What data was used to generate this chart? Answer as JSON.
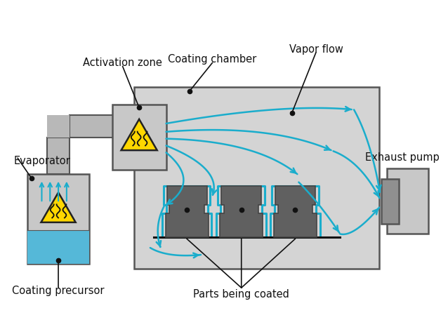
{
  "bg_color": "#ffffff",
  "chamber_color": "#d4d4d4",
  "chamber_edge": "#555555",
  "dark_gray": "#666666",
  "medium_gray": "#909090",
  "light_gray": "#c8c8c8",
  "pipe_gray": "#b8b8b8",
  "yellow": "#FFD700",
  "blue_arrow": "#1aadcc",
  "black": "#111111",
  "text_color": "#111111",
  "labels": {
    "evaporator": "Evaporator",
    "activation_zone": "Activation zone",
    "coating_chamber": "Coating chamber",
    "vapor_flow": "Vapor flow",
    "exhaust_pump": "Exhaust pump",
    "coating_precursor": "Coating precursor",
    "parts_being_coated": "Parts being coated"
  },
  "figsize": [
    6.38,
    4.76
  ],
  "dpi": 100
}
